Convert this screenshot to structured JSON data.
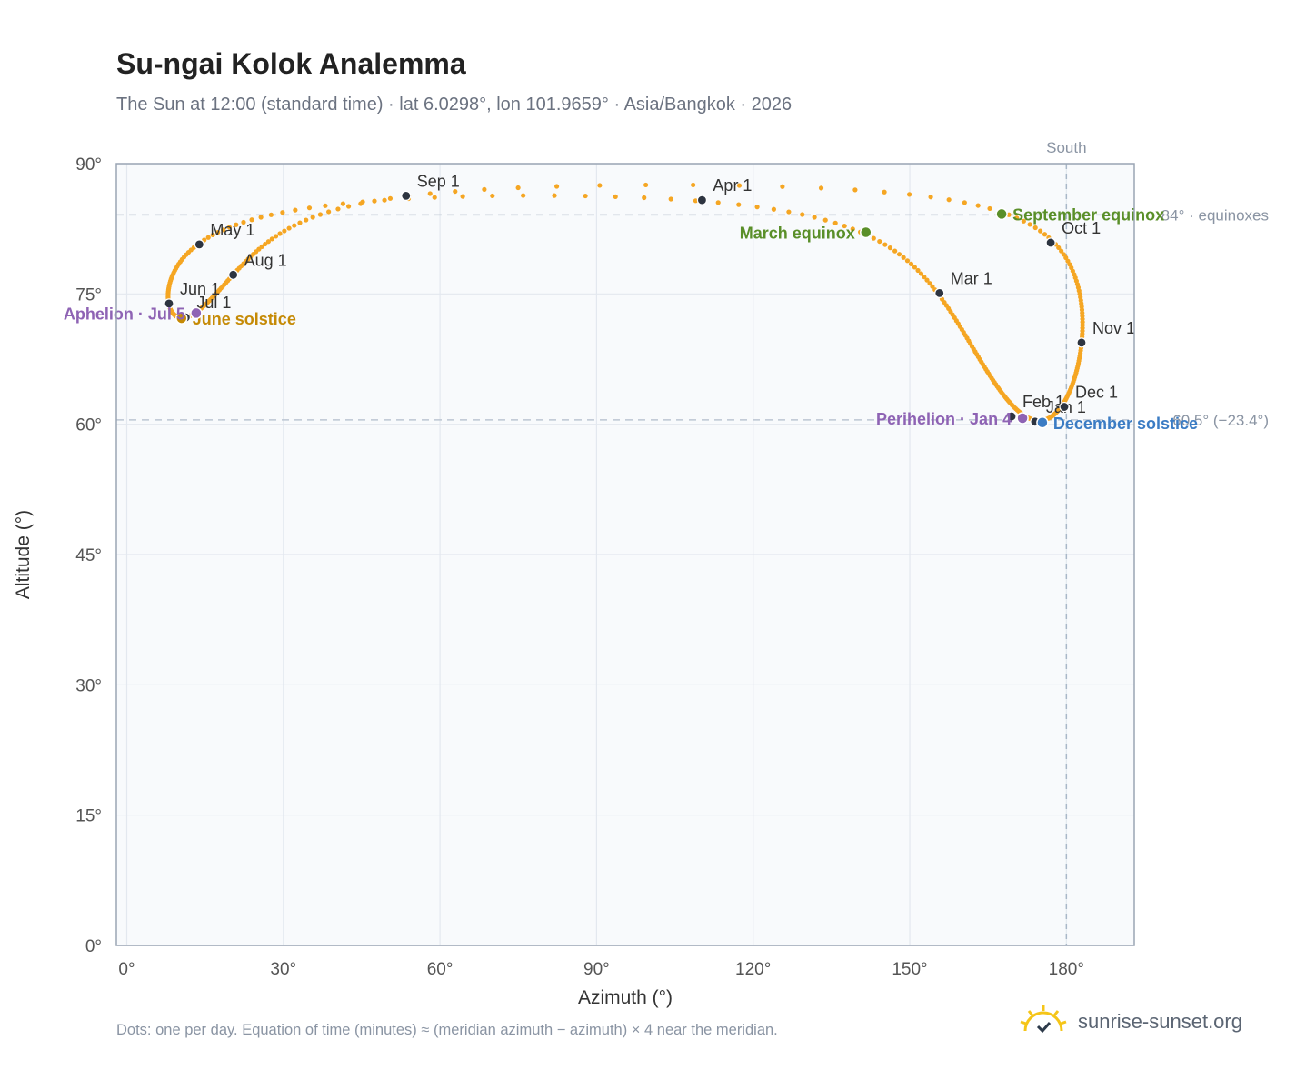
{
  "title": "Su-ngai Kolok Analemma",
  "subtitle": "The Sun at 12:00 (standard time) · lat 6.0298°, lon 101.9659° · Asia/Bangkok · 2026",
  "footnote": "Dots: one per day. Equation of time (minutes) ≈ (meridian azimuth − azimuth) × 4 near the meridian.",
  "brand": "sunrise-sunset.org",
  "chart_data": {
    "type": "scatter",
    "xlabel": "Azimuth (°)",
    "ylabel": "Altitude (°)",
    "xlim": [
      -2,
      193
    ],
    "ylim": [
      0,
      90
    ],
    "x_ticks": [
      0,
      30,
      60,
      90,
      120,
      150,
      180
    ],
    "x_tick_labels": [
      "0°",
      "30°",
      "60°",
      "90°",
      "120°",
      "150°",
      "180°"
    ],
    "y_ticks": [
      0,
      15,
      30,
      45,
      60,
      75,
      90
    ],
    "y_tick_labels": [
      "0°",
      "15°",
      "30°",
      "45°",
      "60°",
      "75°",
      "90°"
    ],
    "grid": true,
    "series_color": "#f5a623",
    "reference_lines": [
      {
        "axis": "x",
        "value": 180,
        "label": "South"
      },
      {
        "axis": "y",
        "value": 84.1,
        "label": "84° · equinoxes"
      },
      {
        "axis": "y",
        "value": 60.5,
        "label": "60.5° (−23.4°)"
      }
    ],
    "month_markers": [
      {
        "label": "Jan 1",
        "x": 174.0,
        "y": 60.3
      },
      {
        "label": "Feb 1",
        "x": 169.5,
        "y": 60.9
      },
      {
        "label": "Mar 1",
        "x": 155.7,
        "y": 75.1
      },
      {
        "label": "Apr 1",
        "x": 110.2,
        "y": 85.8
      },
      {
        "label": "May 1",
        "x": 13.9,
        "y": 80.7
      },
      {
        "label": "Jun 1",
        "x": 8.1,
        "y": 73.9
      },
      {
        "label": "Jul 1",
        "x": 11.3,
        "y": 72.3
      },
      {
        "label": "Aug 1",
        "x": 20.4,
        "y": 77.2
      },
      {
        "label": "Sep 1",
        "x": 53.5,
        "y": 86.3
      },
      {
        "label": "Oct 1",
        "x": 177.0,
        "y": 80.9
      },
      {
        "label": "Nov 1",
        "x": 182.9,
        "y": 69.4
      },
      {
        "label": "Dec 1",
        "x": 179.6,
        "y": 62.0
      }
    ],
    "events": [
      {
        "label": "March equinox",
        "x": 141.6,
        "y": 82.1,
        "color": "#5a8f29"
      },
      {
        "label": "June solstice",
        "x": 10.5,
        "y": 72.2,
        "color": "#c58a06"
      },
      {
        "label": "September equinox",
        "x": 167.6,
        "y": 84.2,
        "color": "#5a8f29"
      },
      {
        "label": "December solstice",
        "x": 175.4,
        "y": 60.2,
        "color": "#3b7cc4"
      },
      {
        "label": "Perihelion · Jan 4",
        "x": 171.6,
        "y": 60.7,
        "color": "#8e63b4"
      },
      {
        "label": "Aphelion · Jul 5",
        "x": 13.3,
        "y": 72.8,
        "color": "#8e63b4"
      }
    ]
  }
}
